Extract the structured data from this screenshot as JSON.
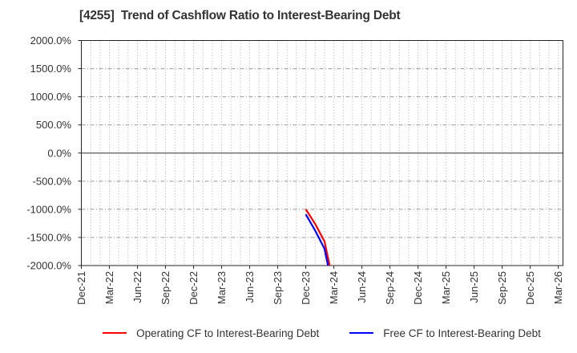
{
  "title": {
    "text": "[4255]  Trend of Cashflow Ratio to Interest-Bearing Debt",
    "color": "#333333"
  },
  "chart_data": {
    "type": "line",
    "title": "[4255]  Trend of Cashflow Ratio to Interest-Bearing Debt",
    "xlabel": "",
    "ylabel": "",
    "ylim": [
      -2000,
      2000
    ],
    "values_below_ylim_clipped": true,
    "grid": {
      "vertical": "monthly dotted",
      "horizontal": "every 500% dash-dot",
      "zero_line": "solid gray"
    },
    "legend_position": "bottom-center",
    "y_ticks": [
      {
        "value": 2000,
        "label": "2000.0%"
      },
      {
        "value": 1500,
        "label": "1500.0%"
      },
      {
        "value": 1000,
        "label": "1000.0%"
      },
      {
        "value": 500,
        "label": "500.0%"
      },
      {
        "value": 0,
        "label": "0.0%"
      },
      {
        "value": -500,
        "label": "-500.0%"
      },
      {
        "value": -1000,
        "label": "-1000.0%"
      },
      {
        "value": -1500,
        "label": "-1500.0%"
      },
      {
        "value": -2000,
        "label": "-2000.0%"
      }
    ],
    "x_axis": {
      "unit": "month",
      "start": "Dec-21",
      "end": "Mar-26",
      "total_months": 51,
      "tick_every_months": 3,
      "tick_labels": [
        "Dec-21",
        "Mar-22",
        "Jun-22",
        "Sep-22",
        "Dec-22",
        "Mar-23",
        "Jun-23",
        "Sep-23",
        "Dec-23",
        "Mar-24",
        "Jun-24",
        "Sep-24",
        "Dec-24",
        "Mar-25",
        "Jun-25",
        "Sep-25",
        "Dec-25",
        "Mar-26"
      ],
      "label_rotation_deg": -90
    },
    "series": [
      {
        "name": "Operating CF to Interest-Bearing Debt",
        "color": "#ff0000",
        "points": [
          {
            "x": "Dec-23",
            "y": -1000
          },
          {
            "x": "Jan-24",
            "y": -1260
          },
          {
            "x": "Feb-24",
            "y": -1570
          },
          {
            "x": "Mar-24",
            "y": -2350
          }
        ]
      },
      {
        "name": "Free CF to Interest-Bearing Debt",
        "color": "#0000ff",
        "points": [
          {
            "x": "Dec-23",
            "y": -1090
          },
          {
            "x": "Jan-24",
            "y": -1380
          },
          {
            "x": "Feb-24",
            "y": -1700
          },
          {
            "x": "Mar-24",
            "y": -2500
          }
        ]
      }
    ]
  },
  "legend": {
    "items": [
      {
        "label": "Operating CF to Interest-Bearing Debt",
        "color": "#ff0000"
      },
      {
        "label": "Free CF to Interest-Bearing Debt",
        "color": "#0000ff"
      }
    ]
  },
  "style": {
    "axis_color": "#262626",
    "tick_label_color": "#333333",
    "vgrid_color": "#b0b0b0",
    "hgrid_color": "#9a9a9a",
    "zero_line_color": "#737373",
    "series_line_width": 2.2
  }
}
